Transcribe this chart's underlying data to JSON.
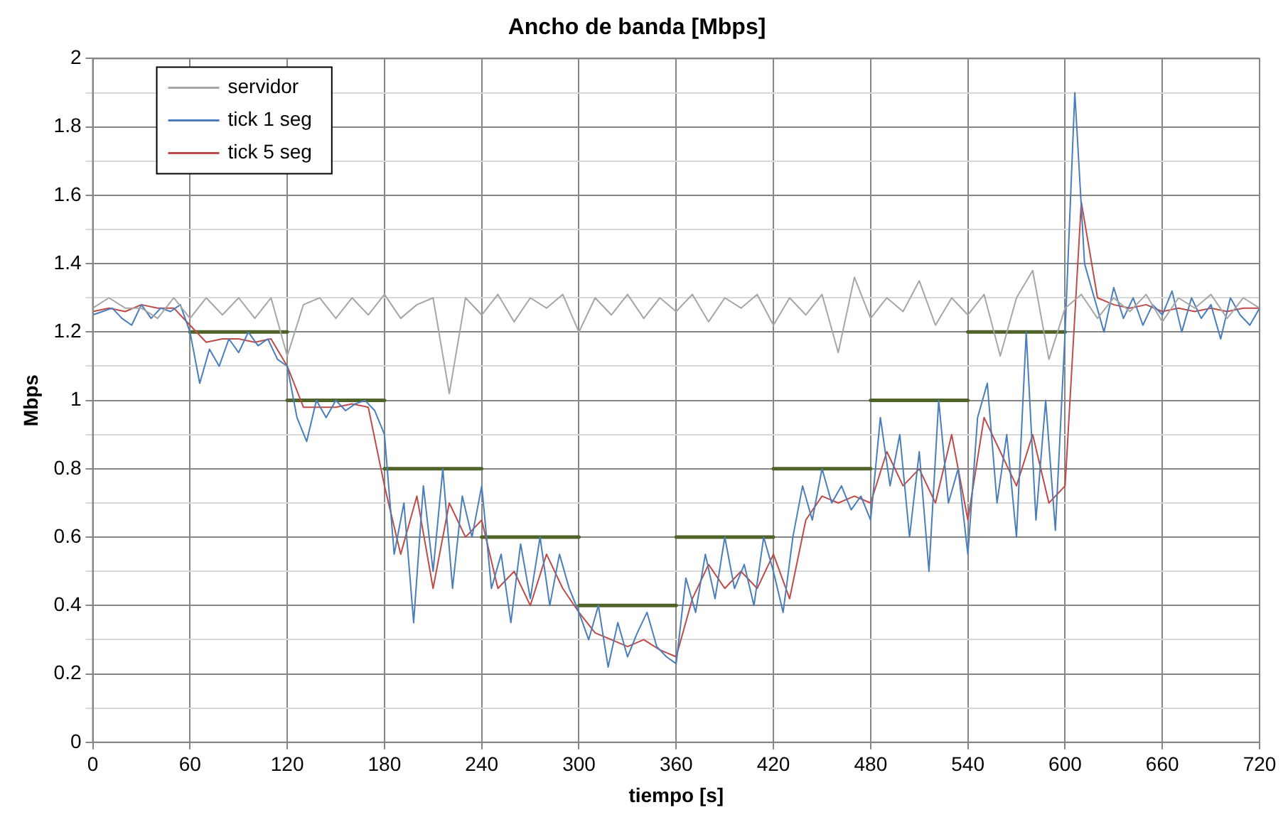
{
  "chart_data": {
    "type": "line",
    "title": "Ancho de banda [Mbps]",
    "xlabel": "tiempo [s]",
    "ylabel": "Mbps",
    "xlim": [
      0,
      720
    ],
    "xticks": [
      0,
      60,
      120,
      180,
      240,
      300,
      360,
      420,
      480,
      540,
      600,
      660,
      720
    ],
    "ylim": [
      0,
      2
    ],
    "yticks": [
      0,
      {
        "value": 0.1,
        "label": null
      },
      0.2,
      {
        "value": 0.3,
        "label": null
      },
      0.4,
      {
        "value": 0.5,
        "label": null
      },
      0.6,
      {
        "value": 0.7,
        "label": null
      },
      0.8,
      {
        "value": 0.9,
        "label": null
      },
      1,
      {
        "value": 1.1,
        "label": null
      },
      1.2,
      {
        "value": 1.3,
        "label": null
      },
      1.4,
      {
        "value": 1.5,
        "label": null
      },
      1.6,
      {
        "value": 1.7,
        "label": null
      },
      1.8,
      {
        "value": 1.9,
        "label": null
      },
      2
    ],
    "grid": true,
    "legend": "top left",
    "marker": "none",
    "line_style": "solid",
    "series": [
      {
        "name": "servidor",
        "color": "#a6a6a6",
        "x": [
          0,
          10,
          20,
          30,
          40,
          50,
          60,
          70,
          80,
          90,
          100,
          110,
          120,
          130,
          140,
          150,
          160,
          170,
          180,
          190,
          200,
          210,
          220,
          230,
          240,
          250,
          260,
          270,
          280,
          290,
          300,
          310,
          320,
          330,
          340,
          350,
          360,
          370,
          380,
          390,
          400,
          410,
          420,
          430,
          440,
          450,
          460,
          470,
          480,
          490,
          500,
          510,
          520,
          530,
          540,
          550,
          560,
          570,
          580,
          590,
          600,
          610,
          620,
          630,
          640,
          650,
          660,
          670,
          680,
          690,
          700,
          710,
          720
        ],
        "values": [
          1.27,
          1.3,
          1.27,
          1.27,
          1.24,
          1.3,
          1.24,
          1.3,
          1.25,
          1.3,
          1.24,
          1.3,
          1.13,
          1.28,
          1.3,
          1.24,
          1.3,
          1.25,
          1.31,
          1.24,
          1.28,
          1.3,
          1.02,
          1.3,
          1.25,
          1.31,
          1.23,
          1.3,
          1.27,
          1.31,
          1.2,
          1.3,
          1.25,
          1.31,
          1.24,
          1.3,
          1.26,
          1.31,
          1.23,
          1.3,
          1.27,
          1.31,
          1.22,
          1.3,
          1.25,
          1.31,
          1.14,
          1.36,
          1.24,
          1.3,
          1.26,
          1.35,
          1.22,
          1.3,
          1.25,
          1.31,
          1.13,
          1.3,
          1.38,
          1.12,
          1.27,
          1.31,
          1.24,
          1.3,
          1.26,
          1.31,
          1.23,
          1.3,
          1.27,
          1.31,
          1.24,
          1.3,
          1.27
        ]
      },
      {
        "name": "tick 1 seg",
        "color": "#4a7ebb",
        "x": [
          0,
          6,
          12,
          18,
          24,
          30,
          36,
          42,
          48,
          54,
          60,
          66,
          72,
          78,
          84,
          90,
          96,
          102,
          108,
          114,
          120,
          126,
          132,
          138,
          144,
          150,
          156,
          162,
          168,
          174,
          180,
          186,
          192,
          198,
          204,
          210,
          216,
          222,
          228,
          234,
          240,
          246,
          252,
          258,
          264,
          270,
          276,
          282,
          288,
          294,
          300,
          306,
          312,
          318,
          324,
          330,
          336,
          342,
          348,
          354,
          360,
          366,
          372,
          378,
          384,
          390,
          396,
          402,
          408,
          414,
          420,
          426,
          432,
          438,
          444,
          450,
          456,
          462,
          468,
          474,
          480,
          486,
          492,
          498,
          504,
          510,
          516,
          522,
          528,
          534,
          540,
          546,
          552,
          558,
          564,
          570,
          576,
          582,
          588,
          594,
          600,
          606,
          612,
          618,
          624,
          630,
          636,
          642,
          648,
          654,
          660,
          666,
          672,
          678,
          684,
          690,
          696,
          702,
          708,
          714,
          720
        ],
        "values": [
          1.25,
          1.26,
          1.27,
          1.24,
          1.22,
          1.28,
          1.24,
          1.27,
          1.26,
          1.28,
          1.2,
          1.05,
          1.15,
          1.1,
          1.18,
          1.14,
          1.2,
          1.16,
          1.18,
          1.12,
          1.1,
          0.95,
          0.88,
          1,
          0.95,
          1,
          0.97,
          0.99,
          1,
          0.97,
          0.9,
          0.55,
          0.7,
          0.35,
          0.75,
          0.5,
          0.8,
          0.45,
          0.72,
          0.6,
          0.75,
          0.45,
          0.55,
          0.35,
          0.58,
          0.42,
          0.6,
          0.4,
          0.55,
          0.45,
          0.38,
          0.3,
          0.4,
          0.22,
          0.35,
          0.25,
          0.32,
          0.38,
          0.28,
          0.25,
          0.23,
          0.48,
          0.38,
          0.55,
          0.42,
          0.6,
          0.45,
          0.52,
          0.4,
          0.6,
          0.5,
          0.38,
          0.6,
          0.75,
          0.65,
          0.8,
          0.7,
          0.75,
          0.68,
          0.72,
          0.65,
          0.95,
          0.75,
          0.9,
          0.6,
          0.85,
          0.5,
          1,
          0.7,
          0.8,
          0.55,
          0.95,
          1.05,
          0.7,
          0.9,
          0.6,
          1.2,
          0.65,
          1,
          0.62,
          1.2,
          1.9,
          1.4,
          1.3,
          1.2,
          1.33,
          1.24,
          1.3,
          1.22,
          1.28,
          1.25,
          1.32,
          1.2,
          1.3,
          1.24,
          1.28,
          1.18,
          1.3,
          1.25,
          1.22,
          1.27
        ]
      },
      {
        "name": "tick 5 seg",
        "color": "#be4b48",
        "x": [
          0,
          10,
          20,
          30,
          40,
          50,
          60,
          70,
          80,
          90,
          100,
          110,
          120,
          130,
          140,
          150,
          160,
          170,
          180,
          190,
          200,
          210,
          220,
          230,
          240,
          250,
          260,
          270,
          280,
          290,
          300,
          310,
          320,
          330,
          340,
          350,
          360,
          370,
          380,
          390,
          400,
          410,
          420,
          430,
          440,
          450,
          460,
          470,
          480,
          490,
          500,
          510,
          520,
          530,
          540,
          550,
          560,
          570,
          580,
          590,
          600,
          610,
          620,
          630,
          640,
          650,
          660,
          670,
          680,
          690,
          700,
          710,
          720
        ],
        "values": [
          1.26,
          1.27,
          1.26,
          1.28,
          1.27,
          1.27,
          1.22,
          1.17,
          1.18,
          1.18,
          1.17,
          1.18,
          1.1,
          0.98,
          0.98,
          0.98,
          0.99,
          0.98,
          0.75,
          0.55,
          0.72,
          0.45,
          0.7,
          0.6,
          0.65,
          0.45,
          0.5,
          0.4,
          0.55,
          0.45,
          0.38,
          0.32,
          0.3,
          0.28,
          0.3,
          0.27,
          0.25,
          0.42,
          0.52,
          0.45,
          0.5,
          0.45,
          0.55,
          0.42,
          0.65,
          0.72,
          0.7,
          0.72,
          0.7,
          0.85,
          0.75,
          0.8,
          0.7,
          0.9,
          0.65,
          0.95,
          0.85,
          0.75,
          0.9,
          0.7,
          0.75,
          1.58,
          1.3,
          1.28,
          1.27,
          1.28,
          1.26,
          1.27,
          1.26,
          1.27,
          1.26,
          1.27,
          1.27
        ]
      },
      {
        "color": "#4f6228",
        "x": [
          60,
          120
        ],
        "values": [
          1.2,
          1.2
        ]
      },
      {
        "color": "#4f6228",
        "x": [
          120,
          180
        ],
        "values": [
          1,
          1
        ]
      },
      {
        "color": "#4f6228",
        "x": [
          180,
          240
        ],
        "values": [
          0.8,
          0.8
        ]
      },
      {
        "color": "#4f6228",
        "x": [
          240,
          300
        ],
        "values": [
          0.6,
          0.6
        ]
      },
      {
        "color": "#4f6228",
        "x": [
          300,
          360
        ],
        "values": [
          0.4,
          0.4
        ]
      },
      {
        "color": "#4f6228",
        "x": [
          360,
          420
        ],
        "values": [
          0.6,
          0.6
        ]
      },
      {
        "color": "#4f6228",
        "x": [
          420,
          480
        ],
        "values": [
          0.8,
          0.8
        ]
      },
      {
        "color": "#4f6228",
        "x": [
          480,
          540
        ],
        "values": [
          1,
          1
        ]
      },
      {
        "color": "#4f6228",
        "x": [
          540,
          600
        ],
        "values": [
          1.2,
          1.2
        ]
      }
    ]
  }
}
